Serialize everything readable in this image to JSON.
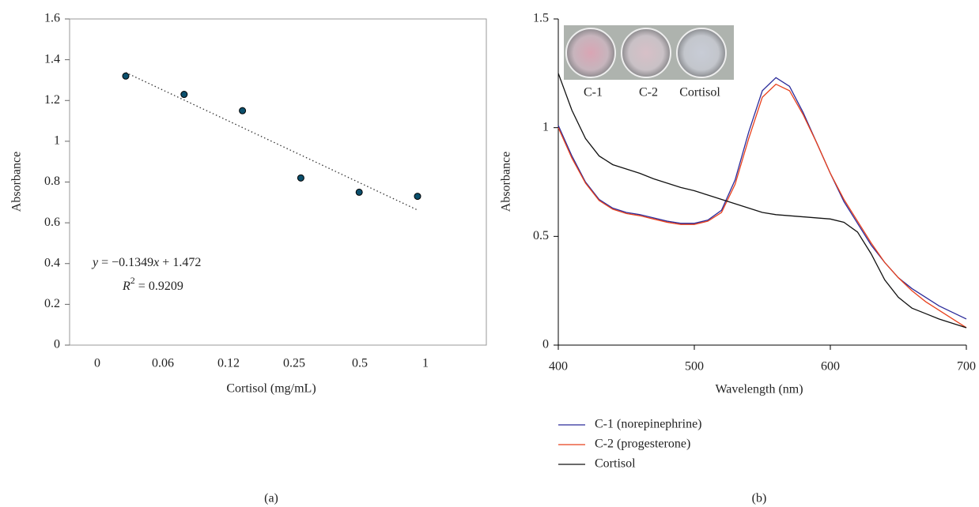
{
  "chart_data": [
    {
      "type": "scatter",
      "categories": [
        "0",
        "0.06",
        "0.12",
        "0.25",
        "0.5",
        "1"
      ],
      "values": [
        1.32,
        1.23,
        1.15,
        0.82,
        0.75,
        0.73
      ],
      "color": "#0b4f6c",
      "ylim": [
        0,
        1.6
      ],
      "yticks": [
        0,
        0.2,
        0.4,
        0.6,
        0.8,
        1,
        1.2,
        1.4,
        1.6
      ],
      "x_label": "Cortisol (mg/mL)",
      "y_label": "Absorbance",
      "panel_label": "(a)",
      "trendline": {
        "slope": {
          "value": -0.1349,
          "label": "−0.1349"
        },
        "intercept": 1.472,
        "r2": 0.9209,
        "lhs": "y",
        "eq": " = ",
        "var": "x",
        "plus": " + ",
        "r": "R",
        "r_power": "2"
      }
    },
    {
      "type": "line",
      "x": [
        400,
        410,
        420,
        430,
        440,
        450,
        460,
        470,
        480,
        490,
        500,
        510,
        520,
        530,
        540,
        550,
        560,
        570,
        580,
        590,
        600,
        610,
        620,
        630,
        640,
        650,
        660,
        670,
        680,
        690,
        700
      ],
      "series": [
        {
          "name": "C-1 (norepinephrine)",
          "color": "#2b2b9a",
          "values": [
            1.01,
            0.87,
            0.75,
            0.67,
            0.63,
            0.61,
            0.6,
            0.585,
            0.57,
            0.56,
            0.56,
            0.575,
            0.62,
            0.76,
            0.98,
            1.17,
            1.23,
            1.19,
            1.07,
            0.93,
            0.79,
            0.66,
            0.56,
            0.46,
            0.38,
            0.31,
            0.26,
            0.22,
            0.18,
            0.15,
            0.12
          ]
        },
        {
          "name": "C-2 (progesterone)",
          "color": "#e8401c",
          "values": [
            1.0,
            0.86,
            0.745,
            0.665,
            0.625,
            0.605,
            0.595,
            0.58,
            0.565,
            0.555,
            0.555,
            0.57,
            0.61,
            0.74,
            0.95,
            1.14,
            1.2,
            1.17,
            1.06,
            0.93,
            0.79,
            0.67,
            0.57,
            0.47,
            0.38,
            0.31,
            0.25,
            0.2,
            0.16,
            0.12,
            0.08
          ]
        },
        {
          "name": "Cortisol",
          "color": "#111111",
          "values": [
            1.25,
            1.08,
            0.95,
            0.87,
            0.83,
            0.81,
            0.79,
            0.765,
            0.745,
            0.725,
            0.71,
            0.69,
            0.67,
            0.65,
            0.63,
            0.61,
            0.6,
            0.595,
            0.59,
            0.585,
            0.58,
            0.565,
            0.52,
            0.42,
            0.3,
            0.22,
            0.17,
            0.145,
            0.12,
            0.1,
            0.08
          ]
        }
      ],
      "xlim": [
        400,
        700
      ],
      "ylim": [
        0,
        1.5
      ],
      "xticks": [
        400,
        500,
        600,
        700
      ],
      "yticks": [
        0,
        0.5,
        1,
        1.5
      ],
      "x_label": "Wavelength (nm)",
      "y_label": "Absorbance",
      "panel_label": "(b)",
      "legend": "bottom",
      "inset_labels": [
        "C-1",
        "C-2",
        "Cortisol"
      ]
    }
  ]
}
